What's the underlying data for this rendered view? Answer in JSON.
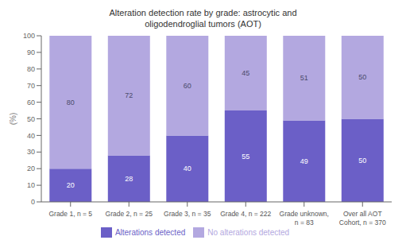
{
  "chart_data": {
    "type": "bar",
    "stacked": true,
    "title": "Alteration detection rate by grade: astrocytic and\noligodendroglial tumors (AOT)",
    "categories": [
      "Grade 1, n = 5",
      "Grade 2, n = 25",
      "Grade 3, n = 35",
      "Grade 4, n = 222",
      "Grade unknown,\nn = 83",
      "Over all AOT\nCohort, n = 370"
    ],
    "series": [
      {
        "name": "Alterations detected",
        "color": "#6b5fc7",
        "values": [
          20,
          28,
          40,
          55,
          49,
          50
        ]
      },
      {
        "name": "No alterations detected",
        "color": "#b3a8e0",
        "values": [
          80,
          72,
          60,
          45,
          51,
          50
        ]
      }
    ],
    "ylabel": "(%)",
    "ylim": [
      0,
      100
    ],
    "yticks": [
      0,
      10,
      20,
      30,
      40,
      50,
      60,
      70,
      80,
      90,
      100
    ],
    "grid": false,
    "legend": "bottom",
    "data_labels": true
  }
}
